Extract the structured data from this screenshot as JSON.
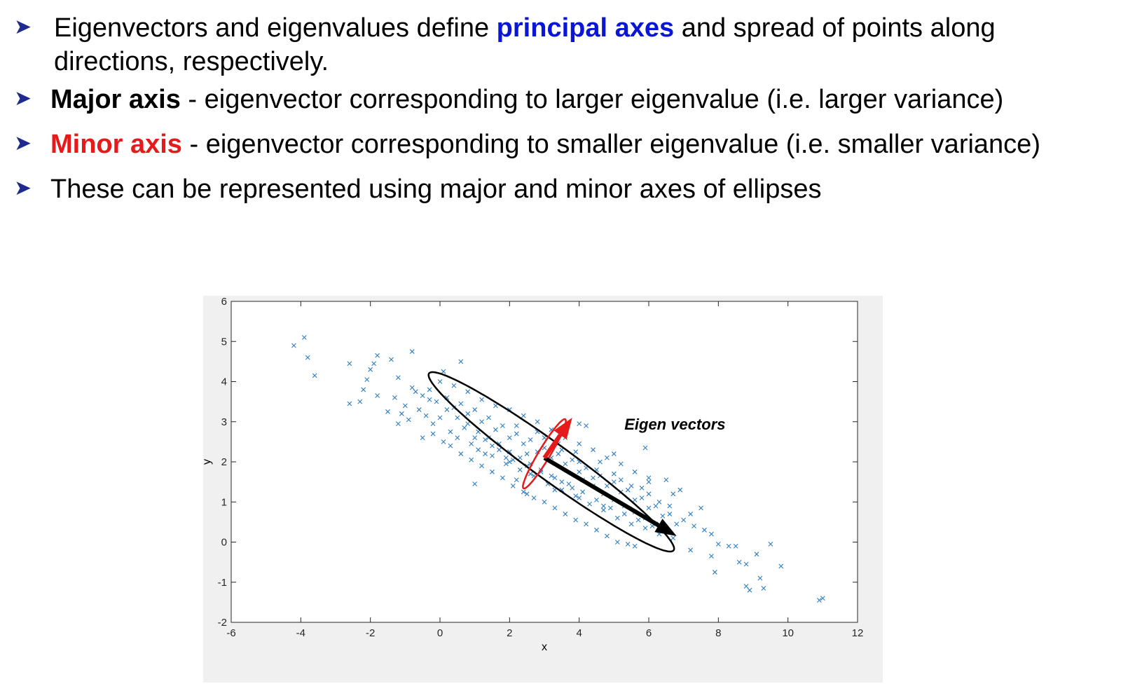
{
  "bullets": [
    {
      "lines": [
        {
          "pre": "Eigenvectors and eigenvalues define ",
          "highlight": "principal axes",
          "post": " and spread of points along"
        },
        {
          "pre": "directions, respectively.",
          "highlight": "",
          "post": ""
        }
      ],
      "highlight_color": "#0a16d6"
    },
    {
      "pre": "",
      "highlight": "Major axis",
      "post": " - eigenvector corresponding to larger eigenvalue (i.e. larger variance)",
      "highlight_color": "#000000"
    },
    {
      "pre": "",
      "highlight": "Minor axis",
      "post": " - eigenvector corresponding to smaller eigenvalue (i.e. smaller variance)",
      "highlight_color": "#e51a1a"
    },
    {
      "pre": "These can be represented using major and minor axes of ellipses",
      "highlight": "",
      "post": ""
    }
  ],
  "bullet_marker_icon": "arrowhead-bullet-icon",
  "colors": {
    "accent_blue": "#0a16d6",
    "accent_red": "#e51a1a",
    "bullet": "#1f2a8f",
    "points": "#2e7dbf",
    "plot_bg": "#f0f0f0"
  },
  "chart_data": {
    "type": "scatter",
    "title": "",
    "xlabel": "x",
    "ylabel": "y",
    "xlim": [
      -6,
      12
    ],
    "ylim": [
      -2,
      6
    ],
    "xticks": [
      -6,
      -4,
      -2,
      0,
      2,
      4,
      6,
      8,
      10,
      12
    ],
    "yticks": [
      -2,
      -1,
      0,
      1,
      2,
      3,
      4,
      5,
      6
    ],
    "grid": false,
    "marker": "x",
    "annotation": "Eigen vectors",
    "ellipses": [
      {
        "name": "major-ellipse",
        "center": [
          3.2,
          2.0
        ],
        "semi_major": 4.15,
        "semi_minor": 0.48,
        "angle_deg": -32,
        "color": "#000000"
      },
      {
        "name": "minor-ellipse",
        "center": [
          3.0,
          2.2
        ],
        "semi_major": 1.05,
        "semi_minor": 0.16,
        "angle_deg": 55,
        "color": "#e51a1a"
      }
    ],
    "vectors": [
      {
        "name": "major-eigenvector",
        "from": [
          3.0,
          2.1
        ],
        "to": [
          6.8,
          0.15
        ],
        "color": "#000000"
      },
      {
        "name": "minor-eigenvector",
        "from": [
          3.0,
          2.1
        ],
        "to": [
          3.8,
          3.1
        ],
        "color": "#e51a1a"
      }
    ],
    "points": [
      [
        -4.2,
        4.9
      ],
      [
        -3.9,
        5.1
      ],
      [
        -3.8,
        4.6
      ],
      [
        -3.6,
        4.15
      ],
      [
        -2.6,
        4.45
      ],
      [
        -2.6,
        3.45
      ],
      [
        -2.3,
        3.5
      ],
      [
        -2.2,
        3.8
      ],
      [
        -2.1,
        4.05
      ],
      [
        -2.0,
        4.3
      ],
      [
        -1.9,
        4.45
      ],
      [
        -1.8,
        4.65
      ],
      [
        -1.8,
        3.65
      ],
      [
        -1.5,
        3.25
      ],
      [
        -1.4,
        4.55
      ],
      [
        -1.2,
        4.1
      ],
      [
        -1.2,
        2.95
      ],
      [
        -1.0,
        3.4
      ],
      [
        -0.8,
        4.75
      ],
      [
        -0.7,
        3.75
      ],
      [
        -0.5,
        2.6
      ],
      [
        -0.3,
        3.55
      ],
      [
        0.1,
        4.25
      ],
      [
        0.6,
        4.5
      ],
      [
        1.0,
        1.45
      ],
      [
        2.2,
        1.55
      ],
      [
        2.5,
        1.2
      ],
      [
        4.0,
        2.95
      ],
      [
        4.2,
        2.9
      ],
      [
        5.0,
        2.2
      ],
      [
        5.9,
        2.35
      ],
      [
        6.0,
        1.5
      ],
      [
        6.3,
        1.0
      ],
      [
        6.5,
        1.55
      ],
      [
        6.6,
        0.9
      ],
      [
        6.7,
        1.2
      ],
      [
        6.9,
        1.3
      ],
      [
        7.0,
        0.55
      ],
      [
        7.2,
        0.7
      ],
      [
        7.3,
        0.4
      ],
      [
        7.5,
        0.85
      ],
      [
        7.6,
        0.3
      ],
      [
        7.8,
        0.2
      ],
      [
        7.2,
        -0.2
      ],
      [
        7.8,
        -0.35
      ],
      [
        8.0,
        -0.05
      ],
      [
        8.3,
        -0.1
      ],
      [
        8.5,
        -0.1
      ],
      [
        8.6,
        -0.5
      ],
      [
        7.9,
        -0.75
      ],
      [
        8.8,
        -0.55
      ],
      [
        8.8,
        -1.1
      ],
      [
        8.9,
        -1.2
      ],
      [
        9.1,
        -0.3
      ],
      [
        9.2,
        -0.9
      ],
      [
        9.3,
        -1.15
      ],
      [
        9.5,
        -0.05
      ],
      [
        9.8,
        -0.6
      ],
      [
        10.9,
        -1.45
      ],
      [
        11.0,
        -1.4
      ],
      [
        -1.3,
        3.6
      ],
      [
        -1.1,
        3.2
      ],
      [
        -0.9,
        3.05
      ],
      [
        -0.6,
        3.3
      ],
      [
        -0.4,
        3.15
      ],
      [
        -0.2,
        2.95
      ],
      [
        0.0,
        3.1
      ],
      [
        0.3,
        2.75
      ],
      [
        0.5,
        2.6
      ],
      [
        0.7,
        2.85
      ],
      [
        0.9,
        2.45
      ],
      [
        1.1,
        2.3
      ],
      [
        1.3,
        2.55
      ],
      [
        1.5,
        2.15
      ],
      [
        1.7,
        2.3
      ],
      [
        1.9,
        1.95
      ],
      [
        2.1,
        2.05
      ],
      [
        2.3,
        1.8
      ],
      [
        2.5,
        1.9
      ],
      [
        2.7,
        1.65
      ],
      [
        2.9,
        1.75
      ],
      [
        3.1,
        1.45
      ],
      [
        3.3,
        1.6
      ],
      [
        3.5,
        1.3
      ],
      [
        3.7,
        1.45
      ],
      [
        3.9,
        1.15
      ],
      [
        4.1,
        1.25
      ],
      [
        4.3,
        0.95
      ],
      [
        4.5,
        1.05
      ],
      [
        4.7,
        0.8
      ],
      [
        4.9,
        0.85
      ],
      [
        5.1,
        0.6
      ],
      [
        5.3,
        0.7
      ],
      [
        5.5,
        0.45
      ],
      [
        5.7,
        0.55
      ],
      [
        5.9,
        0.35
      ],
      [
        6.1,
        0.4
      ],
      [
        6.3,
        0.2
      ],
      [
        6.5,
        0.3
      ],
      [
        6.7,
        0.1
      ],
      [
        -0.8,
        3.85
      ],
      [
        -0.5,
        3.65
      ],
      [
        -0.3,
        3.8
      ],
      [
        -0.1,
        3.5
      ],
      [
        0.2,
        3.6
      ],
      [
        0.4,
        3.35
      ],
      [
        0.6,
        3.45
      ],
      [
        0.8,
        3.2
      ],
      [
        1.0,
        3.3
      ],
      [
        1.2,
        3.0
      ],
      [
        1.4,
        3.1
      ],
      [
        1.6,
        2.8
      ],
      [
        1.8,
        2.9
      ],
      [
        2.0,
        2.6
      ],
      [
        2.2,
        2.7
      ],
      [
        2.4,
        2.45
      ],
      [
        2.6,
        2.55
      ],
      [
        2.8,
        2.25
      ],
      [
        3.0,
        2.35
      ],
      [
        3.2,
        2.1
      ],
      [
        3.4,
        2.2
      ],
      [
        3.6,
        1.95
      ],
      [
        3.8,
        2.05
      ],
      [
        4.0,
        1.75
      ],
      [
        4.2,
        1.85
      ],
      [
        4.4,
        1.6
      ],
      [
        4.6,
        1.65
      ],
      [
        4.8,
        1.4
      ],
      [
        5.0,
        1.5
      ],
      [
        5.2,
        1.25
      ],
      [
        5.4,
        1.3
      ],
      [
        5.6,
        1.05
      ],
      [
        5.8,
        1.1
      ],
      [
        6.0,
        0.85
      ],
      [
        6.2,
        0.9
      ],
      [
        6.4,
        0.65
      ],
      [
        6.6,
        0.7
      ],
      [
        6.8,
        0.45
      ],
      [
        -0.2,
        2.7
      ],
      [
        0.1,
        2.5
      ],
      [
        0.3,
        2.4
      ],
      [
        0.6,
        2.2
      ],
      [
        0.9,
        2.05
      ],
      [
        1.2,
        1.9
      ],
      [
        1.5,
        1.75
      ],
      [
        1.8,
        1.6
      ],
      [
        2.1,
        1.4
      ],
      [
        2.4,
        1.25
      ],
      [
        2.7,
        1.1
      ],
      [
        3.0,
        1.0
      ],
      [
        3.3,
        0.85
      ],
      [
        3.6,
        0.7
      ],
      [
        3.9,
        0.55
      ],
      [
        4.2,
        0.45
      ],
      [
        4.5,
        0.3
      ],
      [
        4.8,
        0.15
      ],
      [
        5.1,
        0.0
      ],
      [
        5.4,
        -0.05
      ],
      [
        5.6,
        -0.1
      ],
      [
        0.0,
        4.0
      ],
      [
        0.4,
        3.9
      ],
      [
        0.8,
        3.75
      ],
      [
        1.2,
        3.55
      ],
      [
        1.6,
        3.4
      ],
      [
        2.0,
        3.3
      ],
      [
        2.4,
        3.15
      ],
      [
        2.8,
        3.0
      ],
      [
        3.2,
        2.8
      ],
      [
        3.6,
        2.6
      ],
      [
        4.0,
        2.45
      ],
      [
        4.4,
        2.3
      ],
      [
        4.8,
        2.1
      ],
      [
        5.2,
        1.95
      ],
      [
        5.6,
        1.75
      ],
      [
        6.0,
        1.6
      ],
      [
        0.2,
        3.3
      ],
      [
        0.5,
        3.1
      ],
      [
        0.8,
        2.95
      ],
      [
        1.1,
        2.75
      ],
      [
        1.4,
        2.6
      ],
      [
        1.7,
        2.45
      ],
      [
        2.0,
        2.25
      ],
      [
        2.3,
        2.1
      ],
      [
        2.6,
        1.95
      ],
      [
        2.9,
        1.8
      ],
      [
        3.2,
        1.65
      ],
      [
        3.5,
        1.5
      ],
      [
        3.8,
        1.35
      ],
      [
        4.1,
        1.55
      ],
      [
        4.4,
        1.4
      ],
      [
        4.7,
        1.2
      ],
      [
        5.0,
        1.05
      ],
      [
        5.3,
        0.9
      ],
      [
        5.6,
        0.75
      ],
      [
        5.9,
        0.6
      ],
      [
        6.2,
        0.45
      ],
      [
        1.0,
        2.6
      ],
      [
        1.5,
        2.4
      ],
      [
        2.0,
        2.0
      ],
      [
        2.5,
        2.2
      ],
      [
        3.0,
        2.6
      ],
      [
        3.5,
        2.3
      ],
      [
        4.0,
        2.0
      ],
      [
        4.5,
        1.8
      ],
      [
        5.0,
        1.7
      ],
      [
        5.5,
        1.4
      ],
      [
        6.0,
        1.2
      ],
      [
        2.2,
        2.9
      ],
      [
        2.8,
        2.75
      ],
      [
        3.4,
        2.45
      ],
      [
        3.9,
        2.25
      ],
      [
        4.6,
        2.0
      ],
      [
        5.2,
        1.55
      ],
      [
        5.8,
        1.35
      ],
      [
        1.3,
        2.2
      ],
      [
        1.9,
        2.1
      ],
      [
        2.6,
        1.7
      ],
      [
        3.3,
        1.3
      ],
      [
        4.0,
        1.1
      ],
      [
        4.7,
        0.9
      ]
    ]
  }
}
